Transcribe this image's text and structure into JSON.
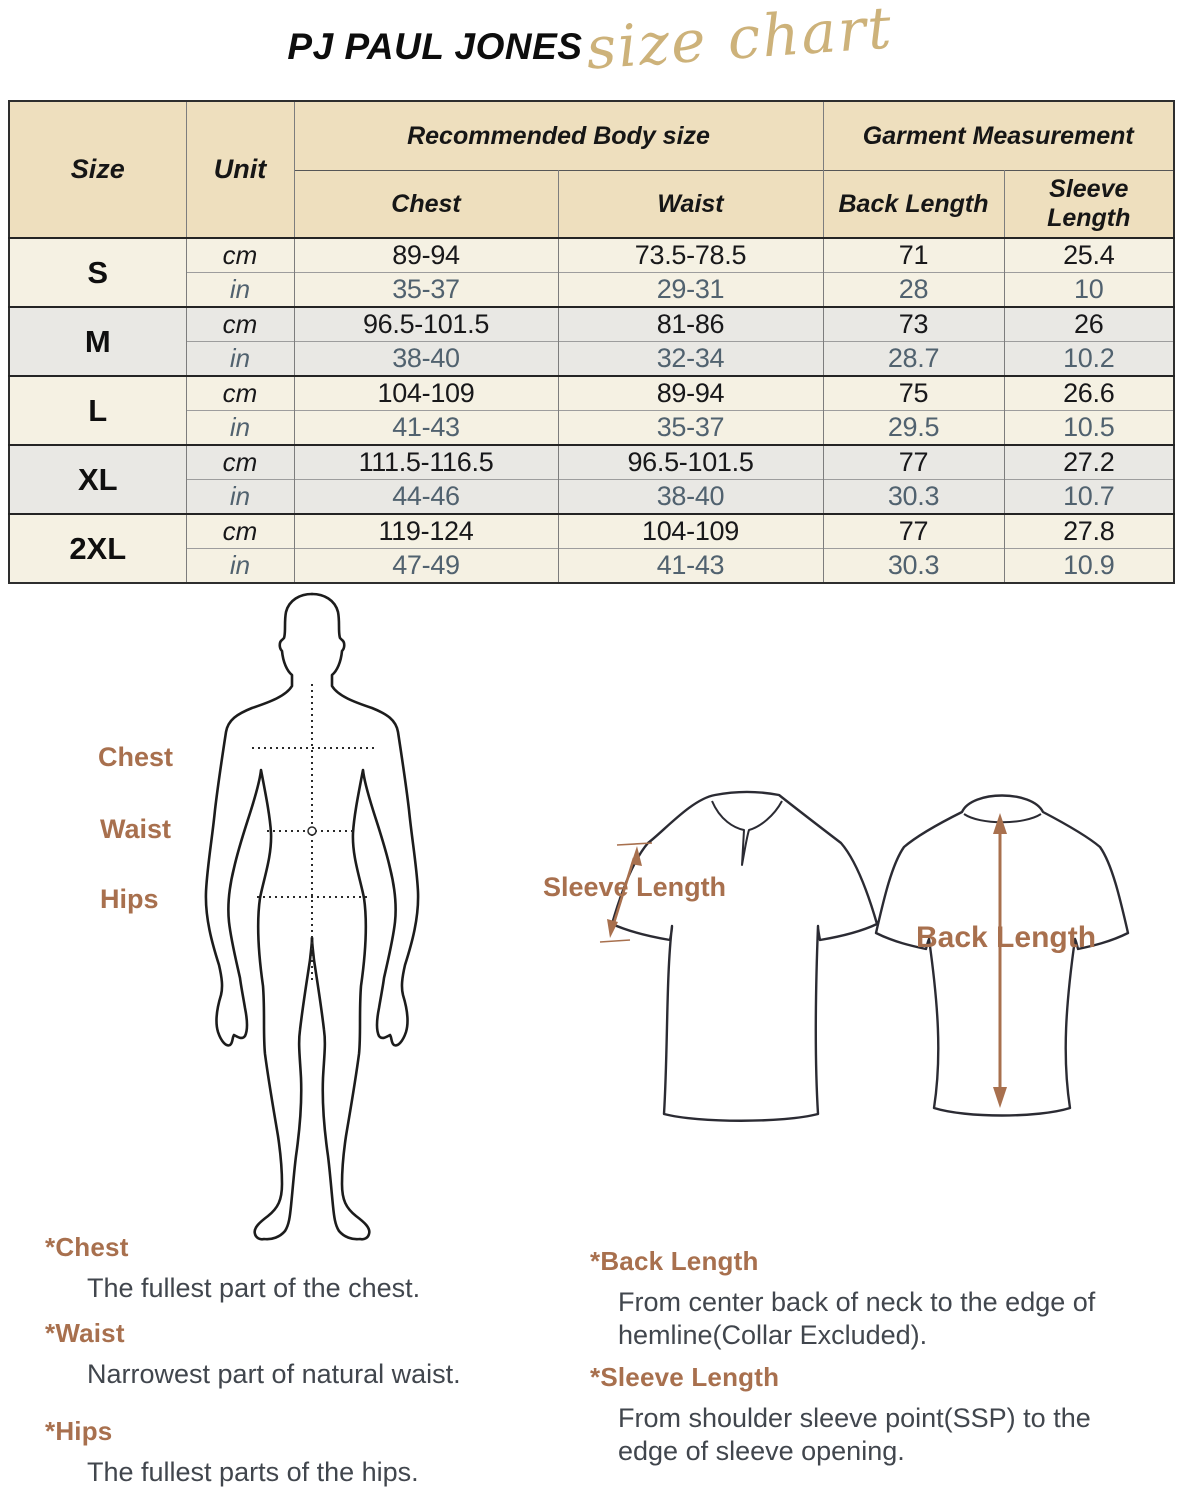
{
  "title": {
    "brand": "PJ PAUL JONES",
    "script": "size chart"
  },
  "table": {
    "header": {
      "size": "Size",
      "unit": "Unit",
      "group_body": "Recommended Body size",
      "group_garment": "Garment Measurement",
      "sub_chest": "Chest",
      "sub_waist": "Waist",
      "sub_back": "Back Length",
      "sub_sleeve": "Sleeve Length"
    },
    "unit_labels": [
      "cm",
      "in"
    ],
    "rows": [
      {
        "size": "S",
        "cm": [
          "89-94",
          "73.5-78.5",
          "71",
          "25.4"
        ],
        "in": [
          "35-37",
          "29-31",
          "28",
          "10"
        ]
      },
      {
        "size": "M",
        "cm": [
          "96.5-101.5",
          "81-86",
          "73",
          "26"
        ],
        "in": [
          "38-40",
          "32-34",
          "28.7",
          "10.2"
        ]
      },
      {
        "size": "L",
        "cm": [
          "104-109",
          "89-94",
          "75",
          "26.6"
        ],
        "in": [
          "41-43",
          "35-37",
          "29.5",
          "10.5"
        ]
      },
      {
        "size": "XL",
        "cm": [
          "111.5-116.5",
          "96.5-101.5",
          "77",
          "27.2"
        ],
        "in": [
          "44-46",
          "38-40",
          "30.3",
          "10.7"
        ]
      },
      {
        "size": "2XL",
        "cm": [
          "119-124",
          "104-109",
          "77",
          "27.8"
        ],
        "in": [
          "47-49",
          "41-43",
          "30.3",
          "10.9"
        ]
      }
    ]
  },
  "diagram": {
    "body_labels": [
      "Chest",
      "Waist",
      "Hips"
    ],
    "sleeve_label": "Sleeve Length",
    "back_label": "Back Length"
  },
  "notes": [
    {
      "term": "*Chest",
      "desc": "The fullest part of the chest."
    },
    {
      "term": "*Waist",
      "desc": "Narrowest part of natural waist."
    },
    {
      "term": "*Hips",
      "desc": "The fullest parts of the hips."
    },
    {
      "term": "*Back Length",
      "desc": "From center back of neck to the edge of hemline(Collar Excluded)."
    },
    {
      "term": "*Sleeve Length",
      "desc": "From shoulder sleeve point(SSP) to the edge of sleeve opening."
    }
  ],
  "colors": {
    "header_bg": "#eedfbe",
    "row_cream": "#f5f1e3",
    "row_gray": "#e9e8e4",
    "accent_brown": "#a8704e",
    "script_gold": "#cdb27a",
    "in_text": "#51626f"
  }
}
